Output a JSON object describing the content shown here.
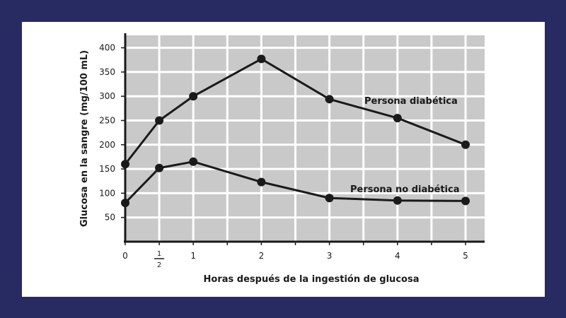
{
  "colors": {
    "frame": "#282a62",
    "card": "#ffffff",
    "plot_bg": "#c9c9c9",
    "grid": "#ffffff",
    "ink": "#1a1a1a"
  },
  "chart_data": {
    "type": "line",
    "title": "",
    "xlabel": "Horas después de la ingestión de glucosa",
    "ylabel": "Glucosa en la sangre (mg/100 mL)",
    "xlim": [
      0,
      5.25
    ],
    "ylim": [
      0,
      400
    ],
    "grid": true,
    "x_ticks": [
      {
        "value": 0,
        "label": "0"
      },
      {
        "value": 0.5,
        "label": "",
        "numerator": "1",
        "denominator": "2"
      },
      {
        "value": 1,
        "label": "1"
      },
      {
        "value": 2,
        "label": "2"
      },
      {
        "value": 3,
        "label": "3"
      },
      {
        "value": 4,
        "label": "4"
      },
      {
        "value": 5,
        "label": "5"
      }
    ],
    "y_ticks": [
      50,
      100,
      150,
      200,
      250,
      300,
      350,
      400
    ],
    "series": [
      {
        "name": "Persona diabética",
        "x": [
          0,
          0.5,
          1,
          2,
          3,
          4,
          5
        ],
        "y": [
          160,
          250,
          300,
          377,
          294,
          255,
          200
        ]
      },
      {
        "name": "Persona no diabética",
        "x": [
          0,
          0.5,
          1,
          2,
          3,
          4,
          5
        ],
        "y": [
          80,
          152,
          165,
          123,
          90,
          85,
          84
        ]
      }
    ]
  }
}
